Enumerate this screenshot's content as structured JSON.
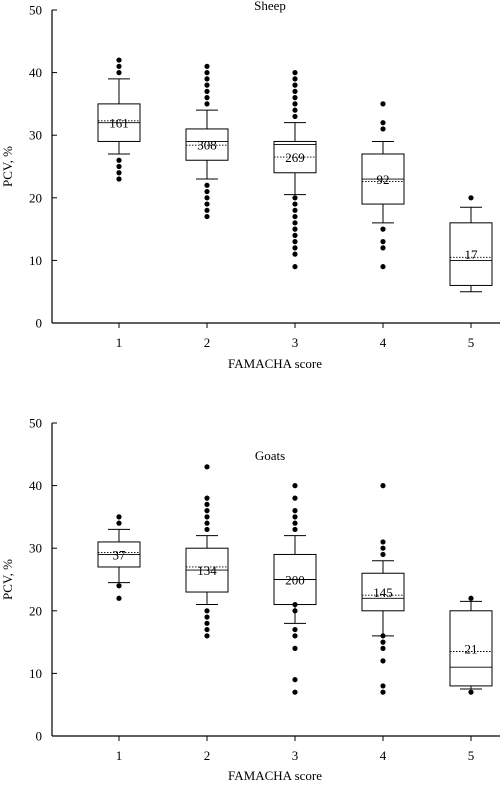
{
  "chart_data": [
    {
      "type": "box",
      "title": "Sheep",
      "xlabel": "FAMACHA score",
      "ylabel": "PCV, %",
      "ylim": [
        0,
        50
      ],
      "yticks": [
        0,
        10,
        20,
        30,
        40,
        50
      ],
      "categories": [
        "1",
        "2",
        "3",
        "4",
        "5"
      ],
      "boxes": [
        {
          "category": "1",
          "n": "161",
          "q1": 29,
          "median": 32,
          "mean": 32.3,
          "q3": 35,
          "whisker_low": 27,
          "whisker_high": 39,
          "outliers": [
            23,
            24,
            25,
            26,
            40,
            41,
            42
          ]
        },
        {
          "category": "2",
          "n": "308",
          "q1": 26,
          "median": 29,
          "mean": 28.4,
          "q3": 31,
          "whisker_low": 23,
          "whisker_high": 34,
          "outliers": [
            17,
            18,
            19,
            20,
            21,
            22,
            35,
            36,
            37,
            38,
            39,
            40,
            41
          ]
        },
        {
          "category": "3",
          "n": "269",
          "q1": 24,
          "median": 28.5,
          "mean": 26.5,
          "q3": 29,
          "whisker_low": 20.5,
          "whisker_high": 32,
          "outliers": [
            9,
            11,
            12,
            13,
            14,
            15,
            16,
            17,
            18,
            19,
            20,
            33,
            34,
            35,
            36,
            37,
            38,
            39,
            40
          ]
        },
        {
          "category": "4",
          "n": "92",
          "q1": 19,
          "median": 23,
          "mean": 22.6,
          "q3": 27,
          "whisker_low": 16,
          "whisker_high": 29,
          "outliers": [
            9,
            12,
            13,
            15,
            31,
            32,
            35
          ]
        },
        {
          "category": "5",
          "n": "17",
          "q1": 6,
          "median": 10,
          "mean": 10.5,
          "q3": 16,
          "whisker_low": 5,
          "whisker_high": 18.5,
          "outliers": [
            20
          ]
        }
      ]
    },
    {
      "type": "box",
      "title": "Goats",
      "xlabel": "FAMACHA score",
      "ylabel": "PCV, %",
      "ylim": [
        0,
        50
      ],
      "yticks": [
        0,
        10,
        20,
        30,
        40,
        50
      ],
      "categories": [
        "1",
        "2",
        "3",
        "4",
        "5"
      ],
      "boxes": [
        {
          "category": "1",
          "n": "37",
          "q1": 27,
          "median": 29,
          "mean": 29.3,
          "q3": 31,
          "whisker_low": 24.5,
          "whisker_high": 33,
          "outliers": [
            22,
            24,
            34,
            35
          ]
        },
        {
          "category": "2",
          "n": "134",
          "q1": 23,
          "median": 26.5,
          "mean": 27,
          "q3": 30,
          "whisker_low": 21,
          "whisker_high": 32,
          "outliers": [
            16,
            17,
            18,
            19,
            20,
            33,
            34,
            35,
            36,
            37,
            38,
            43
          ]
        },
        {
          "category": "3",
          "n": "200",
          "q1": 21,
          "median": 25,
          "mean": 25,
          "q3": 29,
          "whisker_low": 18,
          "whisker_high": 32,
          "outliers": [
            7,
            9,
            14,
            16,
            17,
            20,
            21,
            33,
            34,
            35,
            36,
            38,
            40
          ]
        },
        {
          "category": "4",
          "n": "145",
          "q1": 20,
          "median": 22,
          "mean": 22.5,
          "q3": 26,
          "whisker_low": 16,
          "whisker_high": 28,
          "outliers": [
            7,
            8,
            12,
            14,
            15,
            16,
            29,
            30,
            31,
            40
          ]
        },
        {
          "category": "5",
          "n": "21",
          "q1": 8,
          "median": 11,
          "mean": 13.5,
          "q3": 20,
          "whisker_low": 7.5,
          "whisker_high": 21.5,
          "outliers": [
            7,
            22
          ]
        }
      ]
    }
  ]
}
